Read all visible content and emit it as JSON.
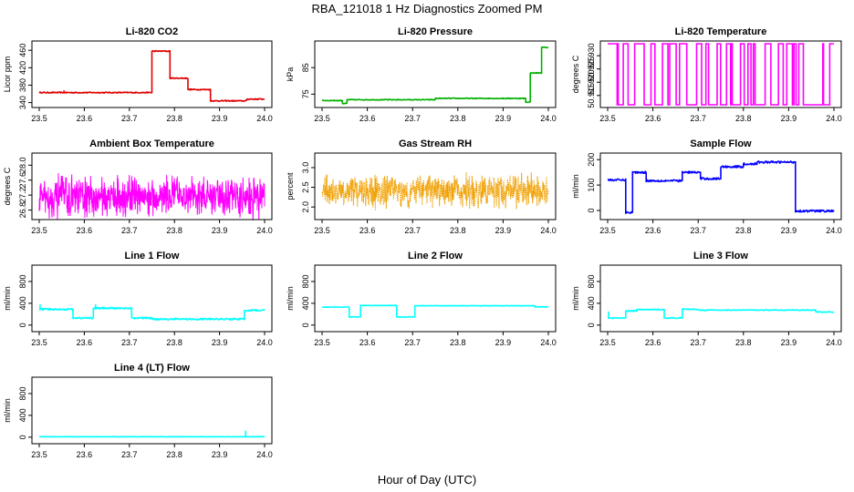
{
  "title": "RBA_121018  1 Hz Diagnostics Zoomed PM",
  "xlabel": "Hour of Day (UTC)",
  "chart_data": [
    {
      "id": "co2",
      "type": "line",
      "title": "Li-820 CO2",
      "ylabel": "Licor ppm",
      "color": "#e00000",
      "xlim": [
        23.5,
        24.0
      ],
      "ylim": [
        335,
        475
      ],
      "yticks": [
        340,
        380,
        420,
        460
      ],
      "xticks": [
        23.5,
        23.6,
        23.7,
        23.8,
        23.9,
        24.0
      ],
      "segments": [
        [
          23.5,
          23.75,
          363
        ],
        [
          23.75,
          23.79,
          458
        ],
        [
          23.79,
          23.83,
          396
        ],
        [
          23.83,
          23.88,
          370
        ],
        [
          23.88,
          23.96,
          344
        ],
        [
          23.96,
          24.0,
          348
        ]
      ],
      "noise": 1.2,
      "spikes": [
        [
          23.555,
          368
        ]
      ]
    },
    {
      "id": "pressure",
      "type": "line",
      "title": "Li-820 Pressure",
      "ylabel": "kPa",
      "color": "#00b000",
      "xlim": [
        23.5,
        24.0
      ],
      "ylim": [
        71,
        94
      ],
      "yticks": [
        75,
        85
      ],
      "ytick_labels": [
        "75",
        "85"
      ],
      "xticks": [
        23.5,
        23.6,
        23.7,
        23.8,
        23.9,
        24.0
      ],
      "segments": [
        [
          23.5,
          23.545,
          72.6
        ],
        [
          23.545,
          23.555,
          71.5
        ],
        [
          23.555,
          23.75,
          72.9
        ],
        [
          23.75,
          23.95,
          73.4
        ],
        [
          23.95,
          23.96,
          72.0
        ],
        [
          23.96,
          23.985,
          83
        ],
        [
          23.985,
          24.0,
          92.6
        ]
      ],
      "noise": 0.15
    },
    {
      "id": "licor_temp",
      "type": "binary",
      "title": "Li-820 Temperature",
      "ylabel": "degrees C",
      "color": "#ff00ff",
      "xlim": [
        23.5,
        24.0
      ],
      "ylim": [
        50.9115,
        50.9345
      ],
      "yticks": [
        50.915,
        50.92,
        50.925,
        50.93
      ],
      "ytick_labels": [
        "50.915",
        "50.920",
        "50.925",
        "50.930"
      ],
      "xticks": [
        23.5,
        23.6,
        23.7,
        23.8,
        23.9,
        24.0
      ],
      "low": 50.9115,
      "high": 50.9345
    },
    {
      "id": "box_temp",
      "type": "noise",
      "title": "Ambient Box Temperature",
      "ylabel": "degrees C",
      "color": "#ff00ff",
      "xlim": [
        23.5,
        24.0
      ],
      "ylim": [
        26.62,
        28.25
      ],
      "yticks": [
        26.8,
        27.2,
        27.6,
        28.0
      ],
      "ytick_labels": [
        "26.8",
        "27.2",
        "27.6",
        "28.0"
      ],
      "xticks": [
        23.5,
        23.6,
        23.7,
        23.8,
        23.9,
        24.0
      ],
      "center": 27.15,
      "spread": 0.5
    },
    {
      "id": "rh",
      "type": "noise",
      "title": "Gas Stream RH",
      "ylabel": "percent",
      "color": "#f0a000",
      "xlim": [
        23.5,
        24.0
      ],
      "ylim": [
        1.75,
        3.3
      ],
      "yticks": [
        2.0,
        2.5,
        3.0
      ],
      "ytick_labels": [
        "2.0",
        "2.5",
        "3.0"
      ],
      "xticks": [
        23.5,
        23.6,
        23.7,
        23.8,
        23.9,
        24.0
      ],
      "center": 2.4,
      "spread": 0.38
    },
    {
      "id": "sample_flow",
      "type": "line",
      "title": "Sample Flow",
      "ylabel": "ml/min",
      "color": "#0000ff",
      "xlim": [
        23.5,
        24.0
      ],
      "ylim": [
        -25,
        215
      ],
      "yticks": [
        0,
        100,
        200
      ],
      "ytick_labels": [
        "0",
        "100",
        "200"
      ],
      "xticks": [
        23.5,
        23.6,
        23.7,
        23.8,
        23.9,
        24.0
      ],
      "segments": [
        [
          23.5,
          23.54,
          120
        ],
        [
          23.54,
          23.555,
          -8
        ],
        [
          23.555,
          23.585,
          150
        ],
        [
          23.585,
          23.665,
          117
        ],
        [
          23.665,
          23.705,
          150
        ],
        [
          23.705,
          23.75,
          125
        ],
        [
          23.75,
          23.8,
          172
        ],
        [
          23.8,
          23.83,
          183
        ],
        [
          23.83,
          23.915,
          190
        ],
        [
          23.915,
          24.0,
          -2
        ]
      ],
      "noise": 4
    },
    {
      "id": "line1",
      "type": "line",
      "title": "Line 1 Flow",
      "ylabel": "ml/min",
      "color": "#00ffff",
      "xlim": [
        23.5,
        24.0
      ],
      "ylim": [
        -70,
        1050
      ],
      "yticks": [
        0,
        400,
        800
      ],
      "ytick_labels": [
        "0",
        "400",
        "800"
      ],
      "xticks": [
        23.5,
        23.6,
        23.7,
        23.8,
        23.9,
        24.0
      ],
      "segments": [
        [
          23.5,
          23.575,
          290
        ],
        [
          23.575,
          23.62,
          130
        ],
        [
          23.62,
          23.705,
          310
        ],
        [
          23.705,
          23.75,
          130
        ],
        [
          23.75,
          23.955,
          110
        ],
        [
          23.955,
          24.0,
          270
        ]
      ],
      "noise": 15,
      "spikes": [
        [
          23.502,
          380
        ],
        [
          23.625,
          380
        ]
      ]
    },
    {
      "id": "line2",
      "type": "line",
      "title": "Line 2 Flow",
      "ylabel": "ml/min",
      "color": "#00ffff",
      "xlim": [
        23.5,
        24.0
      ],
      "ylim": [
        -70,
        1050
      ],
      "yticks": [
        0,
        400,
        800
      ],
      "ytick_labels": [
        "0",
        "400",
        "800"
      ],
      "xticks": [
        23.5,
        23.6,
        23.7,
        23.8,
        23.9,
        24.0
      ],
      "segments": [
        [
          23.5,
          23.56,
          330
        ],
        [
          23.56,
          23.585,
          150
        ],
        [
          23.585,
          23.665,
          360
        ],
        [
          23.665,
          23.705,
          150
        ],
        [
          23.705,
          23.97,
          355
        ],
        [
          23.97,
          24.0,
          335
        ]
      ],
      "noise": 4
    },
    {
      "id": "line3",
      "type": "line",
      "title": "Line 3 Flow",
      "ylabel": "ml/min",
      "color": "#00ffff",
      "xlim": [
        23.5,
        24.0
      ],
      "ylim": [
        -70,
        1050
      ],
      "yticks": [
        0,
        400,
        800
      ],
      "ytick_labels": [
        "0",
        "400",
        "800"
      ],
      "xticks": [
        23.5,
        23.6,
        23.7,
        23.8,
        23.9,
        24.0
      ],
      "segments": [
        [
          23.5,
          23.54,
          130
        ],
        [
          23.54,
          23.565,
          260
        ],
        [
          23.565,
          23.625,
          285
        ],
        [
          23.625,
          23.665,
          130
        ],
        [
          23.665,
          23.7,
          290
        ],
        [
          23.7,
          23.96,
          275
        ],
        [
          23.96,
          24.0,
          240
        ]
      ],
      "noise": 8,
      "spikes": [
        [
          23.502,
          250
        ]
      ]
    },
    {
      "id": "line4",
      "type": "line",
      "title": "Line 4 (LT) Flow",
      "ylabel": "ml/min",
      "color": "#00ffff",
      "xlim": [
        23.5,
        24.0
      ],
      "ylim": [
        -70,
        1050
      ],
      "yticks": [
        0,
        400,
        800
      ],
      "ytick_labels": [
        "0",
        "400",
        "800"
      ],
      "xticks": [
        23.5,
        23.6,
        23.7,
        23.8,
        23.9,
        24.0
      ],
      "segments": [
        [
          23.5,
          24.0,
          8
        ]
      ],
      "noise": 2,
      "spikes": [
        [
          23.958,
          120
        ]
      ]
    }
  ]
}
